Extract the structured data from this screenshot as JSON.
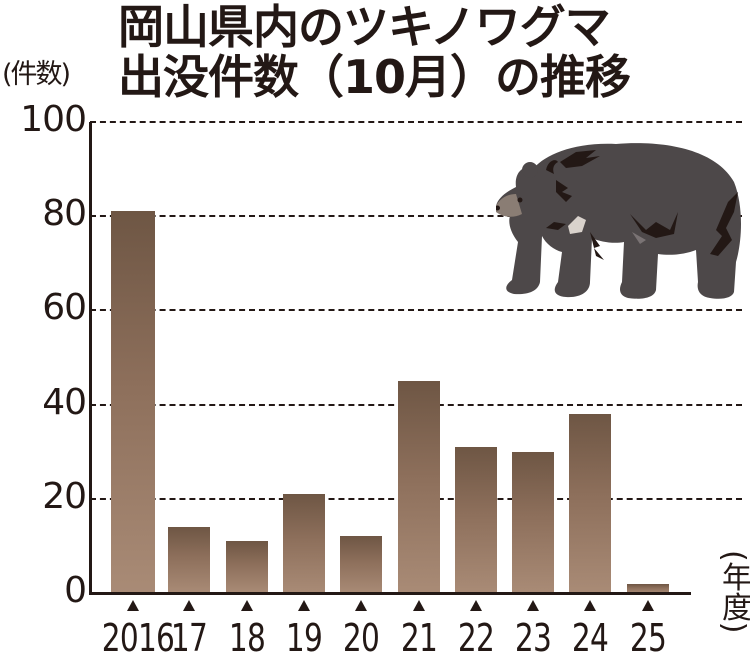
{
  "header": {
    "title_line1": "岡山県内のツキノワグマ",
    "title_line2": "出没件数（10月）の推移",
    "y_unit": "(件数)",
    "x_unit": "(年度)"
  },
  "illustration": {
    "name": "Asiatic black bear (tsukinowaguma)",
    "body_color": "#4d4849",
    "marking_color": "#231815",
    "chest_patch_color": "#d9d2cc"
  },
  "colors": {
    "bar_top": "#6e5644",
    "bar_bottom": "#a98b76",
    "axis": "#231815",
    "text": "#231815",
    "background": "#ffffff"
  },
  "chart_data": {
    "type": "bar",
    "title": "岡山県内のツキノワグマ出没件数（10月）の推移",
    "xlabel": "(年度)",
    "ylabel": "(件数)",
    "categories": [
      "2016",
      "17",
      "18",
      "19",
      "20",
      "21",
      "22",
      "23",
      "24",
      "25"
    ],
    "values": [
      81,
      14,
      11,
      21,
      12,
      45,
      31,
      30,
      38,
      2
    ],
    "ylim": [
      0,
      100
    ],
    "yticks": [
      "0",
      "20",
      "40",
      "60",
      "80",
      "100"
    ],
    "grid": "horizontal dashed",
    "legend": "none"
  }
}
